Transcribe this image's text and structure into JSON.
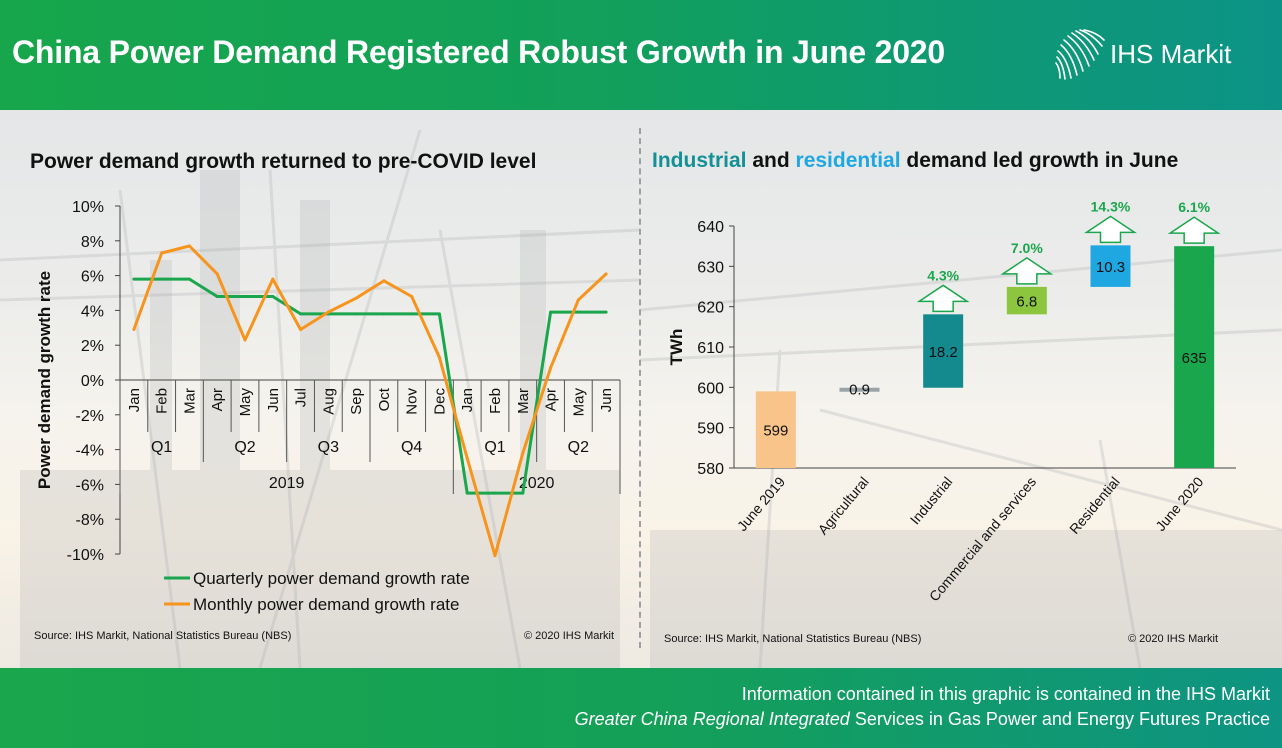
{
  "header": {
    "title": "China Power Demand Registered Robust Growth in June 2020",
    "logo_text": "IHS Markit"
  },
  "left_panel": {
    "title": "Power demand growth returned to pre-COVID level",
    "source": "Source: IHS Markit, National Statistics Bureau (NBS)",
    "copyright": "© 2020 IHS Markit"
  },
  "right_panel": {
    "title_part1": "Industrial",
    "title_part2": " and ",
    "title_part3": "residential",
    "title_part4": " demand led growth in June",
    "source": "Source: IHS Markit, National Statistics Bureau (NBS)",
    "copyright": "© 2020 IHS Markit"
  },
  "footer": {
    "line1": "Information contained in this graphic is contained in the IHS Markit",
    "line2_italic": "Greater China Regional Integrated",
    "line2_rest": " Services in Gas Power and Energy Futures Practice"
  },
  "colors": {
    "quarterly": "#1aa64c",
    "monthly": "#f7941d",
    "baseline_bar": "#f8c48a",
    "agricultural": "#9aa3a8",
    "industrial": "#148a8e",
    "commercial": "#8cc63f",
    "residential": "#1ea7e1",
    "total_bar": "#1aa64c",
    "growth_label": "#1aa64c"
  },
  "chart_data": [
    {
      "type": "line",
      "ylabel": "Power demand growth rate",
      "ylim": [
        -10,
        10
      ],
      "y_ticks": [
        "10%",
        "8%",
        "6%",
        "4%",
        "2%",
        "0%",
        "-2%",
        "-4%",
        "-6%",
        "-8%",
        "-10%"
      ],
      "categories": [
        "Jan",
        "Feb",
        "Mar",
        "Apr",
        "May",
        "Jun",
        "Jul",
        "Aug",
        "Sep",
        "Oct",
        "Nov",
        "Dec",
        "Jan",
        "Feb",
        "Mar",
        "Apr",
        "May",
        "Jun"
      ],
      "quarters": [
        "Q1",
        "Q2",
        "Q3",
        "Q4",
        "Q1",
        "Q2"
      ],
      "years": [
        "2019",
        "2020"
      ],
      "series": [
        {
          "name": "Quarterly power demand growth rate",
          "values": [
            5.8,
            5.8,
            5.8,
            4.8,
            4.8,
            4.8,
            3.8,
            3.8,
            3.8,
            3.8,
            3.8,
            3.8,
            -6.5,
            -6.5,
            -6.5,
            3.9,
            3.9,
            3.9
          ]
        },
        {
          "name": "Monthly power demand growth rate",
          "values": [
            2.9,
            7.3,
            7.7,
            6.1,
            2.3,
            5.8,
            2.9,
            3.9,
            4.7,
            5.7,
            4.8,
            1.3,
            -4.5,
            -10.1,
            -4.2,
            0.7,
            4.6,
            6.1
          ]
        }
      ],
      "legend": "bottom"
    },
    {
      "type": "bar",
      "subtype": "waterfall",
      "ylabel": "TWh",
      "ylim": [
        580,
        640
      ],
      "y_ticks": [
        "640",
        "630",
        "620",
        "610",
        "600",
        "590",
        "580"
      ],
      "categories": [
        "June 2019",
        "Agricultural",
        "Industrial",
        "Commercial and services",
        "Residential",
        "June 2020"
      ],
      "values": [
        599,
        0.9,
        18.2,
        6.8,
        10.3,
        635
      ],
      "value_labels": [
        "599",
        "0.9",
        "18.2",
        "6.8",
        "10.3",
        "635"
      ],
      "growth_labels": [
        "",
        "",
        "4.3%",
        "7.0%",
        "14.3%",
        "6.1%"
      ]
    }
  ]
}
